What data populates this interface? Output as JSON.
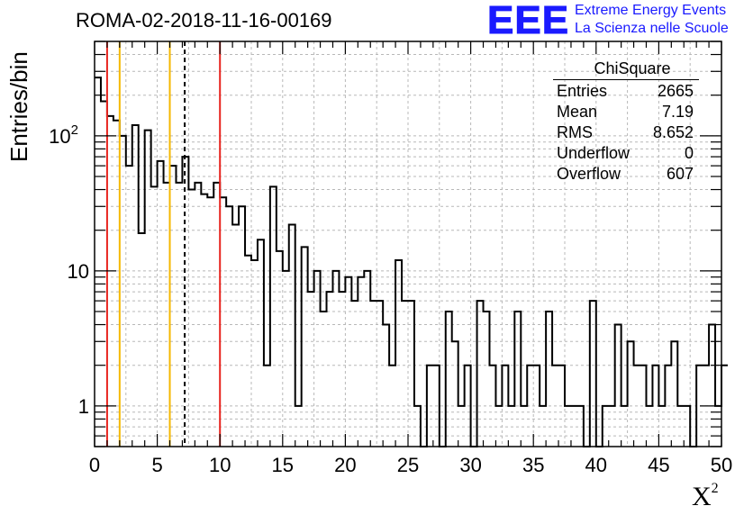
{
  "title": "ROMA-02-2018-11-16-00169",
  "logo": {
    "mark": "EEE",
    "line1": "Extreme Energy Events",
    "line2": "La Scienza nelle Scuole"
  },
  "stats": {
    "title": "ChiSquare",
    "rows": [
      {
        "label": "Entries",
        "value": "2665"
      },
      {
        "label": "Mean",
        "value": "7.19"
      },
      {
        "label": "RMS",
        "value": "8.652"
      },
      {
        "label": "Underflow",
        "value": "0"
      },
      {
        "label": "Overflow",
        "value": "607"
      }
    ]
  },
  "chart_data": {
    "type": "bar",
    "style": "step-histogram",
    "xlabel": "X",
    "xlabel_sup": "2",
    "ylabel": "Entries/bin",
    "xlim": [
      0,
      50
    ],
    "ylim": [
      0.5,
      500
    ],
    "yscale": "log",
    "grid": true,
    "bin_width": 0.5,
    "xticks": [
      0,
      5,
      10,
      15,
      20,
      25,
      30,
      35,
      40,
      45,
      50
    ],
    "xtick_labels": [
      "0",
      "5",
      "10",
      "15",
      "20",
      "25",
      "30",
      "35",
      "40",
      "45",
      "50"
    ],
    "yticks": [
      1,
      10,
      100
    ],
    "ytick_labels": [
      "1",
      "10",
      "10^2"
    ],
    "values": [
      270,
      180,
      140,
      130,
      100,
      60,
      120,
      19,
      110,
      42,
      65,
      45,
      60,
      45,
      70,
      40,
      45,
      37,
      35,
      45,
      35,
      30,
      22,
      30,
      13,
      12,
      17,
      2,
      42,
      14,
      10,
      22,
      1,
      15,
      7,
      10,
      5,
      7,
      10,
      7,
      9,
      6,
      9,
      10,
      6,
      6,
      4,
      2,
      12,
      6,
      6,
      1,
      0,
      2,
      2,
      0,
      5,
      3,
      1,
      2,
      0,
      6,
      5,
      2,
      1,
      2,
      1,
      5,
      1,
      2,
      2,
      1,
      5,
      2,
      2,
      1,
      1,
      1,
      0,
      6,
      0,
      1,
      1,
      4,
      1,
      3,
      2,
      2,
      1,
      2,
      1,
      2,
      3,
      1,
      1,
      0,
      2,
      2,
      4,
      1,
      2
    ],
    "vlines": [
      {
        "x": 1,
        "color": "#e8251f",
        "style": "solid"
      },
      {
        "x": 2,
        "color": "#f5b800",
        "style": "solid"
      },
      {
        "x": 6,
        "color": "#f5b800",
        "style": "solid"
      },
      {
        "x": 7.19,
        "color": "#000000",
        "style": "dashed"
      },
      {
        "x": 10,
        "color": "#e8251f",
        "style": "solid"
      }
    ]
  }
}
